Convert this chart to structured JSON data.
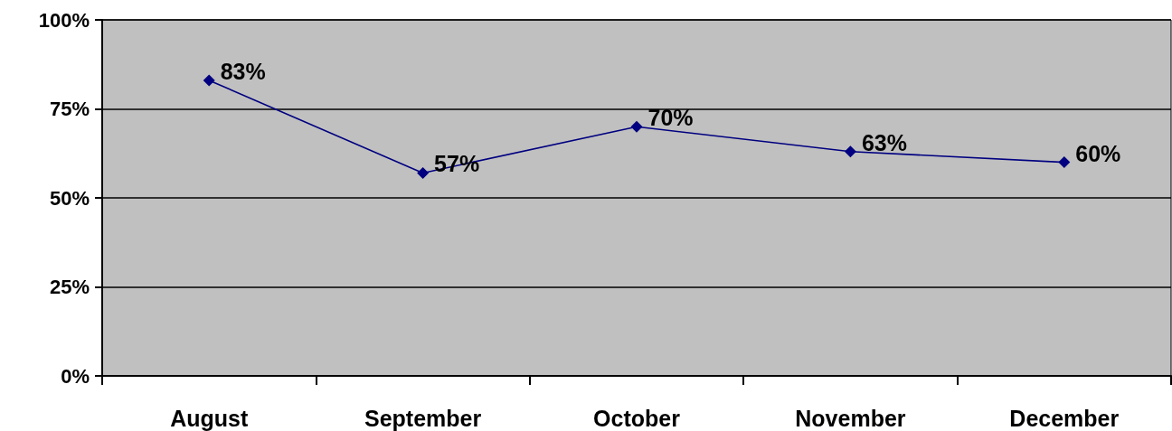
{
  "chart_data": {
    "type": "line",
    "categories": [
      "August",
      "September",
      "October",
      "November",
      "December"
    ],
    "series": [
      {
        "color": "#000080",
        "values": [
          83,
          57,
          70,
          63,
          60
        ],
        "value_labels": [
          "83%",
          "57%",
          "70%",
          "63%",
          "60%"
        ]
      }
    ],
    "ylim": [
      0,
      100
    ],
    "yticks": [
      {
        "value": 0,
        "label": "0%"
      },
      {
        "value": 25,
        "label": "25%"
      },
      {
        "value": 50,
        "label": "50%"
      },
      {
        "value": 75,
        "label": "75%"
      },
      {
        "value": 100,
        "label": "100%"
      }
    ],
    "grid": "y",
    "marker": "diamond",
    "line_style": "solid"
  }
}
